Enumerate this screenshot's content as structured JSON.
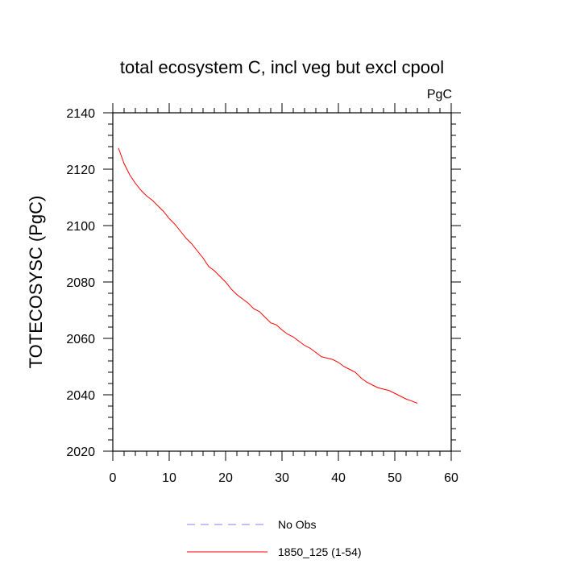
{
  "chart_data": {
    "type": "line",
    "title": "total ecosystem C, incl veg but excl cpool",
    "unit_label": "PgC",
    "xlabel": "",
    "ylabel": "TOTECOSYSC  (PgC)",
    "xlim": [
      0,
      60
    ],
    "ylim": [
      2020,
      2140
    ],
    "x_ticks": [
      0,
      10,
      20,
      30,
      40,
      50,
      60
    ],
    "y_ticks": [
      2020,
      2040,
      2060,
      2080,
      2100,
      2120,
      2140
    ],
    "x_tick_labels": [
      "0",
      "10",
      "20",
      "30",
      "40",
      "50",
      "60"
    ],
    "y_tick_labels": [
      "2020",
      "2040",
      "2060",
      "2080",
      "2100",
      "2120",
      "2140"
    ],
    "grid": false,
    "legend_position": "bottom",
    "series": [
      {
        "name": "No Obs",
        "color": "#8080ff",
        "style": "dashed",
        "x": [],
        "y": []
      },
      {
        "name": "1850_125 (1-54)",
        "color": "#ff0000",
        "style": "solid",
        "x": [
          1,
          2,
          3,
          4,
          5,
          6,
          7,
          8,
          9,
          10,
          11,
          12,
          13,
          14,
          15,
          16,
          17,
          18,
          19,
          20,
          21,
          22,
          23,
          24,
          25,
          26,
          27,
          28,
          29,
          30,
          31,
          32,
          33,
          34,
          35,
          36,
          37,
          38,
          39,
          40,
          41,
          42,
          43,
          44,
          45,
          46,
          47,
          48,
          49,
          50,
          51,
          52,
          53,
          54
        ],
        "y": [
          2127.5,
          2122,
          2118,
          2115,
          2112.5,
          2110.5,
          2109,
          2107,
          2105,
          2102.5,
          2100.5,
          2098,
          2095.5,
          2093.5,
          2091,
          2088.5,
          2085.5,
          2084,
          2082,
          2080,
          2077.5,
          2075.5,
          2074,
          2072.5,
          2070.5,
          2069.5,
          2067.5,
          2065.5,
          2064.8,
          2063,
          2061.5,
          2060.5,
          2059,
          2057.5,
          2056.5,
          2055,
          2053.5,
          2053,
          2052.5,
          2051.5,
          2050,
          2049,
          2048,
          2046,
          2044.5,
          2043.5,
          2042.5,
          2042,
          2041.5,
          2040.5,
          2039.5,
          2038.5,
          2037.8,
          2037
        ]
      }
    ]
  }
}
